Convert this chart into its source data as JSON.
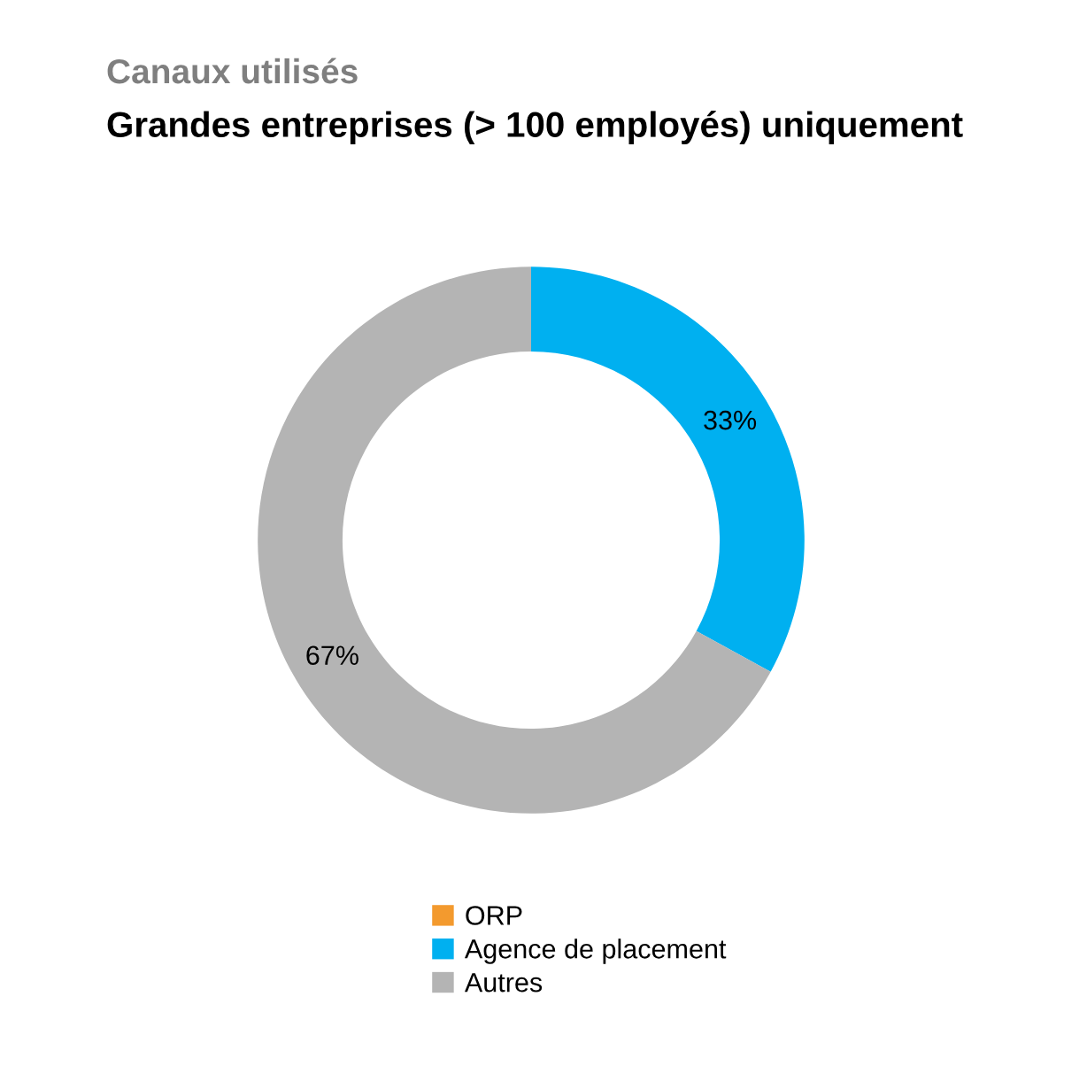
{
  "chart_data": {
    "type": "donut",
    "title": "Canaux utilisés",
    "subtitle": "Grandes entreprises (> 100 employés) uniquement",
    "categories": [
      "ORP",
      "Agence de placement",
      "Autres"
    ],
    "values": [
      0,
      33,
      67
    ],
    "colors": [
      "#f39a2e",
      "#00b0f0",
      "#b4b4b4"
    ],
    "value_labels": [
      null,
      "33%",
      "67%"
    ],
    "legend": "bottom"
  }
}
